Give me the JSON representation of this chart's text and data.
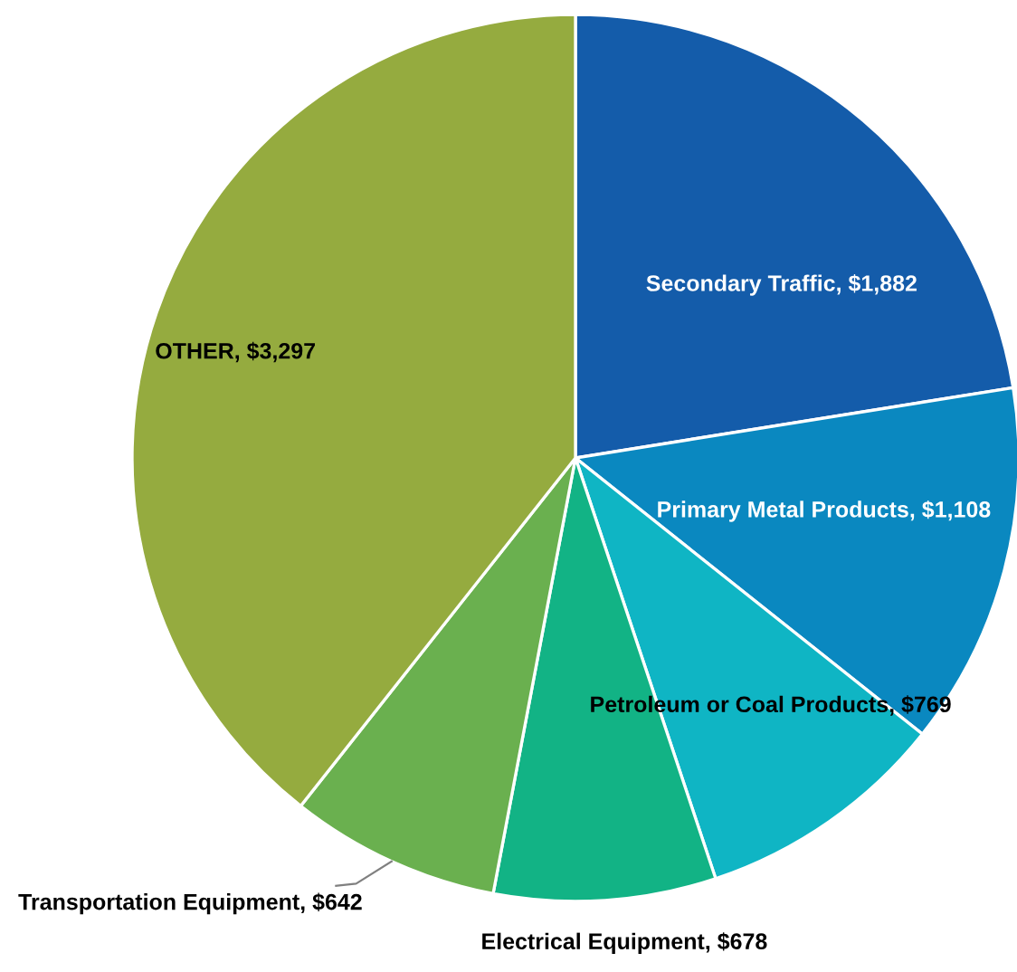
{
  "chart_data": {
    "type": "pie",
    "categories": [
      "Secondary Traffic",
      "Primary Metal Products",
      "Petroleum or Coal Products",
      "Electrical Equipment",
      "Transportation Equipment",
      "OTHER"
    ],
    "values": [
      1882,
      1108,
      769,
      678,
      642,
      3297
    ],
    "value_labels": [
      "$1,882",
      "$1,108",
      "$769",
      "$678",
      "$642",
      "$3,297"
    ],
    "colors": [
      "#145caa",
      "#0a88c0",
      "#0fb5c4",
      "#12b385",
      "#6ab04f",
      "#95ab3f"
    ]
  }
}
